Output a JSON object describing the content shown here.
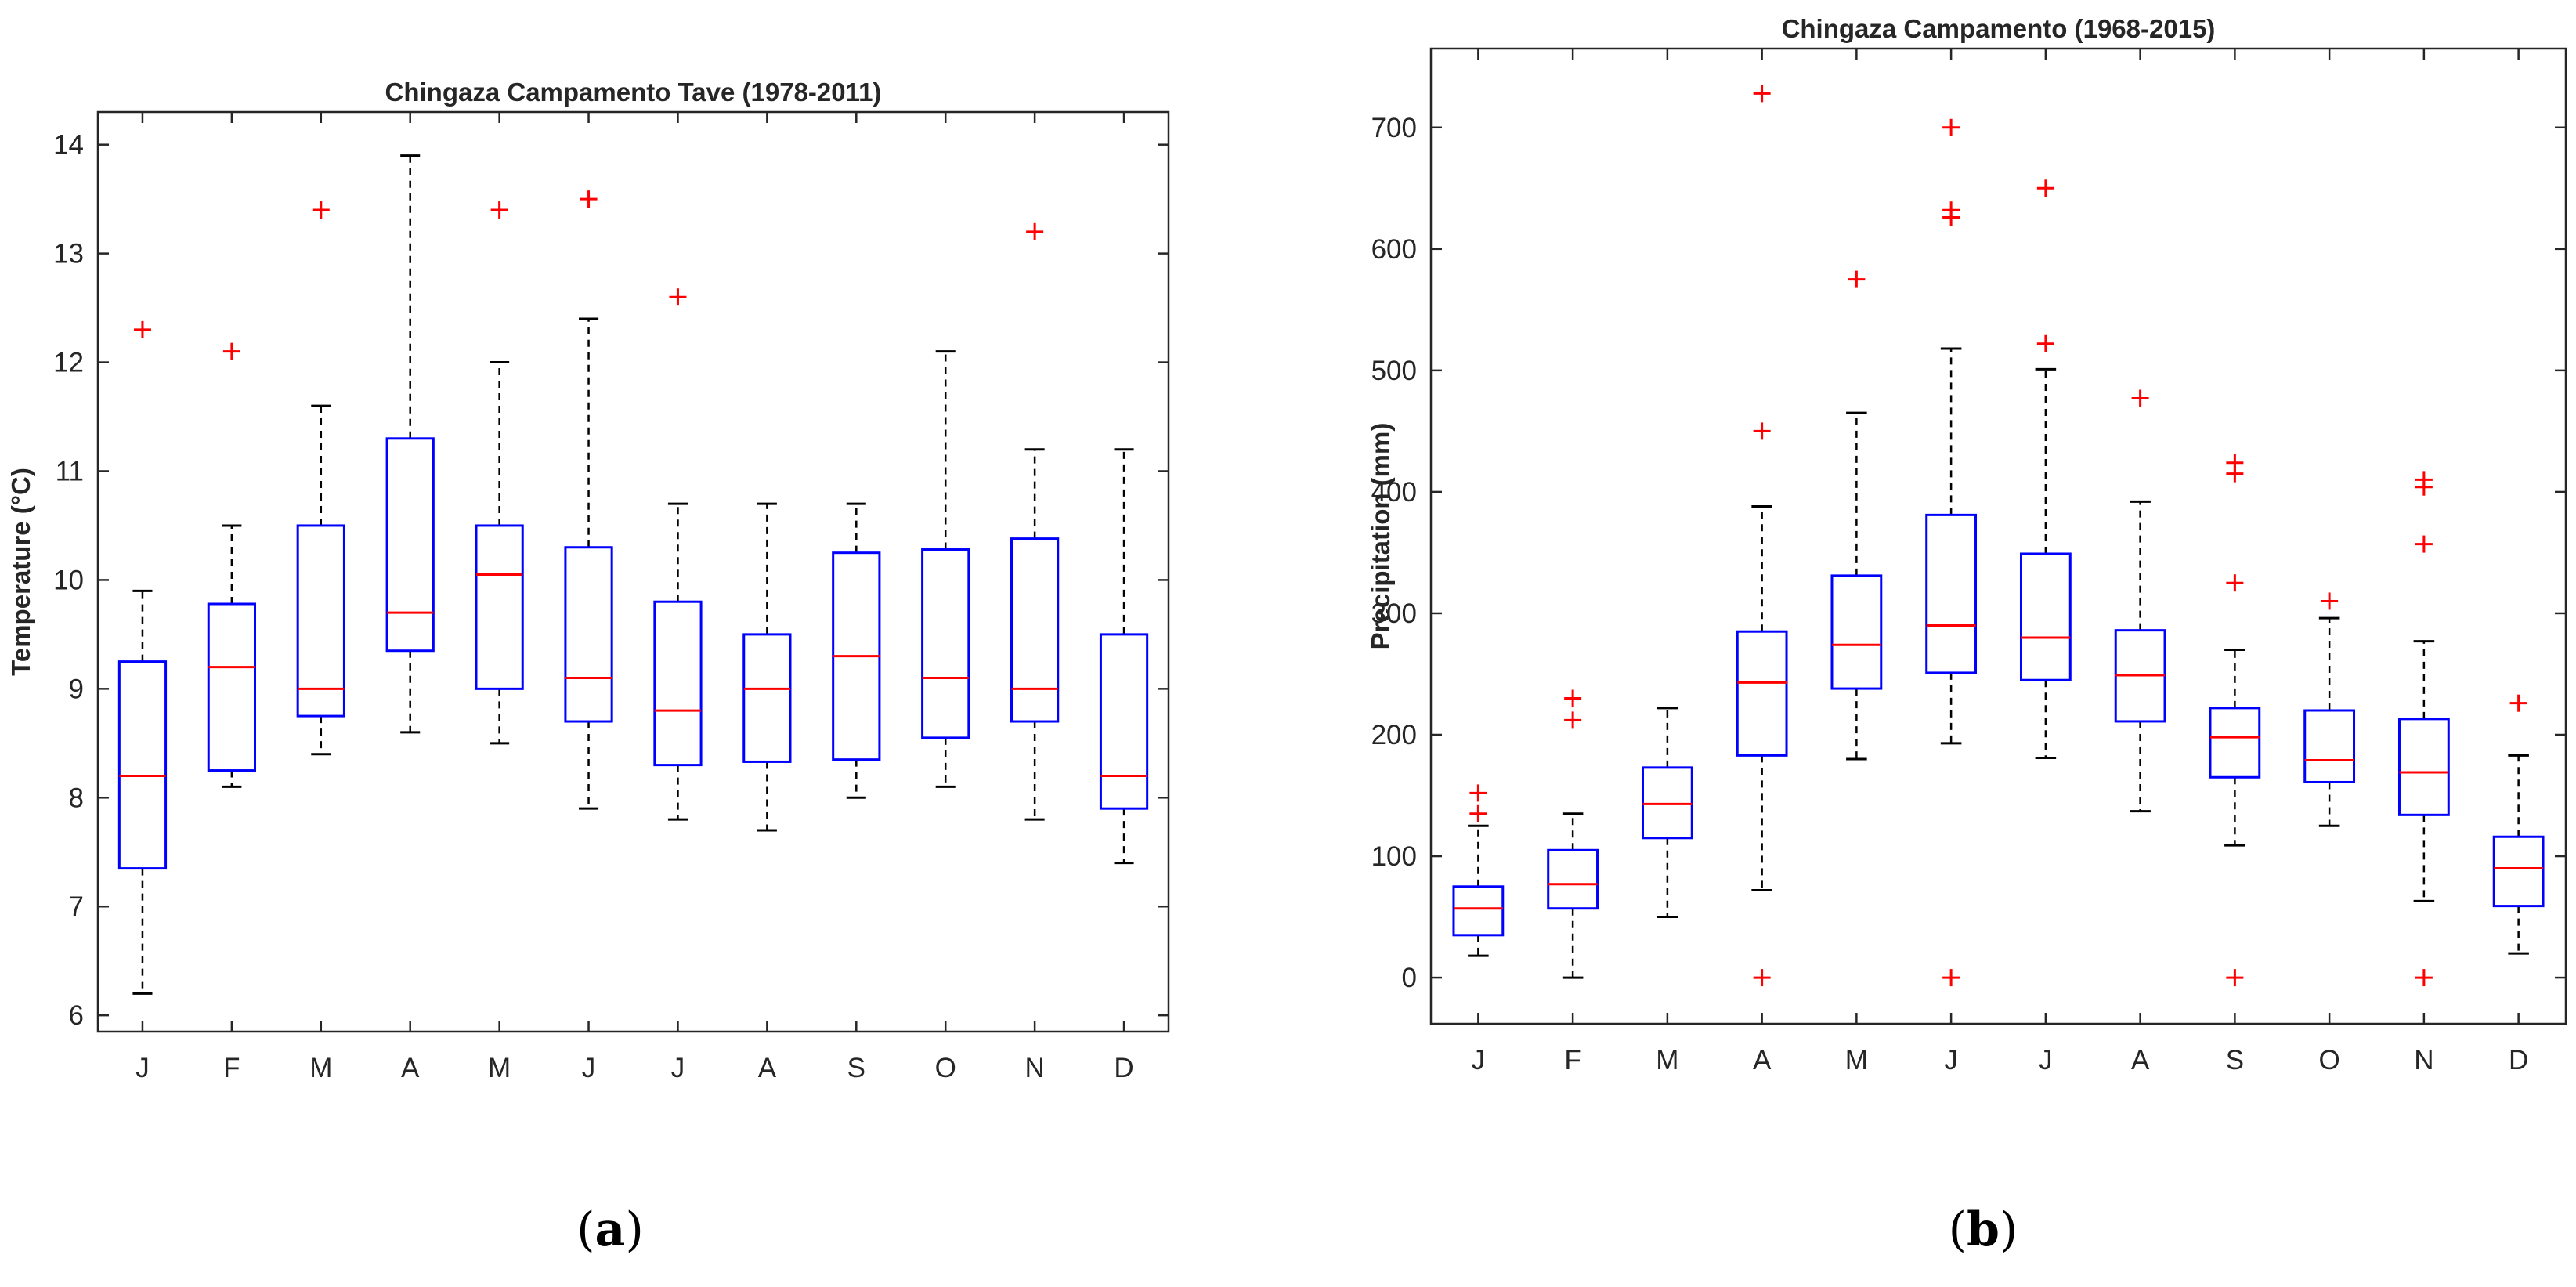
{
  "chart_data": [
    {
      "type": "boxplot",
      "panel_label": "a",
      "title": "Chingaza Campamento Tave (1978-2011)",
      "xlabel": "",
      "ylabel": "Temperature (°C)",
      "ylim": [
        5.85,
        14.3
      ],
      "yticks": [
        6,
        7,
        8,
        9,
        10,
        11,
        12,
        13,
        14
      ],
      "categories": [
        "J",
        "F",
        "M",
        "A",
        "M",
        "J",
        "J",
        "A",
        "S",
        "O",
        "N",
        "D"
      ],
      "boxes": [
        {
          "min": 6.2,
          "q1": 7.35,
          "median": 8.2,
          "q3": 9.25,
          "max": 9.9,
          "outliers": [
            12.3
          ]
        },
        {
          "min": 8.1,
          "q1": 8.25,
          "median": 9.2,
          "q3": 9.78,
          "max": 10.5,
          "outliers": [
            12.1
          ]
        },
        {
          "min": 8.4,
          "q1": 8.75,
          "median": 9.0,
          "q3": 10.5,
          "max": 11.6,
          "outliers": [
            13.4
          ]
        },
        {
          "min": 8.6,
          "q1": 9.35,
          "median": 9.7,
          "q3": 11.3,
          "max": 13.9,
          "outliers": []
        },
        {
          "min": 8.5,
          "q1": 9.0,
          "median": 10.05,
          "q3": 10.5,
          "max": 12.0,
          "outliers": [
            13.4
          ]
        },
        {
          "min": 7.9,
          "q1": 8.7,
          "median": 9.1,
          "q3": 10.3,
          "max": 12.4,
          "outliers": [
            13.5
          ]
        },
        {
          "min": 7.8,
          "q1": 8.3,
          "median": 8.8,
          "q3": 9.8,
          "max": 10.7,
          "outliers": [
            12.6
          ]
        },
        {
          "min": 7.7,
          "q1": 8.33,
          "median": 9.0,
          "q3": 9.5,
          "max": 10.7,
          "outliers": []
        },
        {
          "min": 8.0,
          "q1": 8.35,
          "median": 9.3,
          "q3": 10.25,
          "max": 10.7,
          "outliers": []
        },
        {
          "min": 8.1,
          "q1": 8.55,
          "median": 9.1,
          "q3": 10.28,
          "max": 12.1,
          "outliers": []
        },
        {
          "min": 7.8,
          "q1": 8.7,
          "median": 9.0,
          "q3": 10.38,
          "max": 11.2,
          "outliers": [
            13.2
          ]
        },
        {
          "min": 7.4,
          "q1": 7.9,
          "median": 8.2,
          "q3": 9.5,
          "max": 11.2,
          "outliers": []
        }
      ],
      "colors": {
        "box": "#0000ff",
        "median": "#ff0000",
        "outlier": "#ff0000",
        "whisker": "#000000"
      }
    },
    {
      "type": "boxplot",
      "panel_label": "b",
      "title": "Chingaza Campamento (1968-2015)",
      "xlabel": "",
      "ylabel": "Precipitation (mm)",
      "ylim": [
        -38,
        765
      ],
      "yticks": [
        0,
        100,
        200,
        300,
        400,
        500,
        600,
        700
      ],
      "categories": [
        "J",
        "F",
        "M",
        "A",
        "M",
        "J",
        "J",
        "A",
        "S",
        "O",
        "N",
        "D"
      ],
      "boxes": [
        {
          "min": 18,
          "q1": 35,
          "median": 57,
          "q3": 75,
          "max": 125,
          "outliers": [
            135,
            152
          ]
        },
        {
          "min": 0,
          "q1": 57,
          "median": 77,
          "q3": 105,
          "max": 135,
          "outliers": [
            212,
            230
          ]
        },
        {
          "min": 50,
          "q1": 115,
          "median": 143,
          "q3": 173,
          "max": 222,
          "outliers": []
        },
        {
          "min": 72,
          "q1": 183,
          "median": 243,
          "q3": 285,
          "max": 388,
          "outliers": [
            0,
            450,
            728
          ]
        },
        {
          "min": 180,
          "q1": 238,
          "median": 274,
          "q3": 331,
          "max": 465,
          "outliers": [
            575
          ]
        },
        {
          "min": 193,
          "q1": 251,
          "median": 290,
          "q3": 381,
          "max": 518,
          "outliers": [
            0,
            626,
            632,
            700
          ]
        },
        {
          "min": 181,
          "q1": 245,
          "median": 280,
          "q3": 349,
          "max": 501,
          "outliers": [
            522,
            650
          ]
        },
        {
          "min": 137,
          "q1": 211,
          "median": 249,
          "q3": 286,
          "max": 392,
          "outliers": [
            477
          ]
        },
        {
          "min": 109,
          "q1": 165,
          "median": 198,
          "q3": 222,
          "max": 270,
          "outliers": [
            0,
            325,
            415,
            424
          ]
        },
        {
          "min": 125,
          "q1": 161,
          "median": 179,
          "q3": 220,
          "max": 296,
          "outliers": [
            310
          ]
        },
        {
          "min": 63,
          "q1": 134,
          "median": 169,
          "q3": 213,
          "max": 277,
          "outliers": [
            0,
            357,
            404,
            410
          ]
        },
        {
          "min": 20,
          "q1": 59,
          "median": 90,
          "q3": 116,
          "max": 183,
          "outliers": [
            226
          ]
        }
      ],
      "colors": {
        "box": "#0000ff",
        "median": "#ff0000",
        "outlier": "#ff0000",
        "whisker": "#000000"
      }
    }
  ]
}
